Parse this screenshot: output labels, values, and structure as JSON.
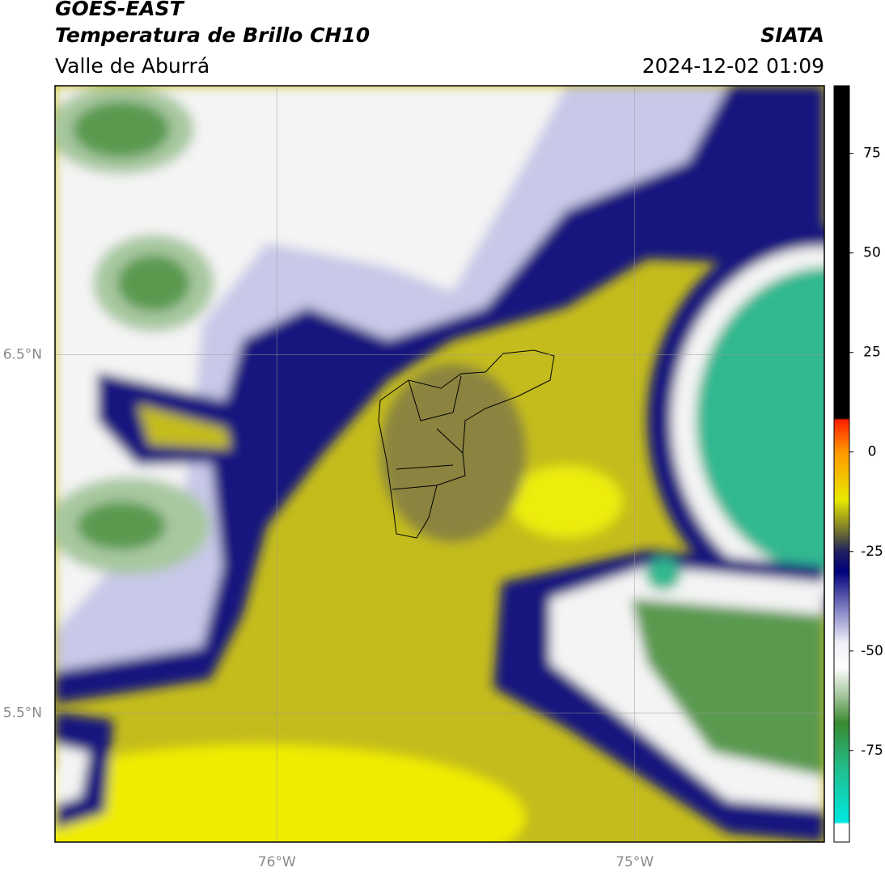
{
  "header": {
    "satellite": "GOES-EAST",
    "product": "Temperatura de Brillo CH10",
    "region": "Valle de Aburrá",
    "agency": "SIATA",
    "timestamp": "2024-12-02 01:09"
  },
  "map": {
    "xlim": [
      -76.62,
      -74.47
    ],
    "ylim": [
      5.14,
      7.25
    ],
    "xticks": [
      {
        "value": -76,
        "label": "76°W"
      },
      {
        "value": -75,
        "label": "75°W"
      }
    ],
    "yticks": [
      {
        "value": 6.5,
        "label": "6.5°N"
      },
      {
        "value": 5.5,
        "label": "5.5°N"
      }
    ],
    "grid": true
  },
  "colorbar": {
    "lim": [
      -98,
      92
    ],
    "ticks": [
      75,
      50,
      25,
      0,
      -25,
      -50,
      -75
    ],
    "colormap": [
      {
        "value": -98,
        "color": "#ffffff"
      },
      {
        "value": -93.5,
        "color": "#ffffff"
      },
      {
        "value": -93,
        "color": "#00e8e0"
      },
      {
        "value": -80,
        "color": "#20c090"
      },
      {
        "value": -68,
        "color": "#3a8a30"
      },
      {
        "value": -61,
        "color": "#a8c8a0"
      },
      {
        "value": -54,
        "color": "#ffffff"
      },
      {
        "value": -48,
        "color": "#f0f0f8"
      },
      {
        "value": -40,
        "color": "#8888c8"
      },
      {
        "value": -30,
        "color": "#00007a"
      },
      {
        "value": -25,
        "color": "#202060"
      },
      {
        "value": -20,
        "color": "#707030"
      },
      {
        "value": -12,
        "color": "#e8e800"
      },
      {
        "value": 0,
        "color": "#ff9800"
      },
      {
        "value": 8,
        "color": "#ff2000"
      },
      {
        "value": 8.5,
        "color": "#000000"
      },
      {
        "value": 92,
        "color": "#000000"
      }
    ]
  }
}
